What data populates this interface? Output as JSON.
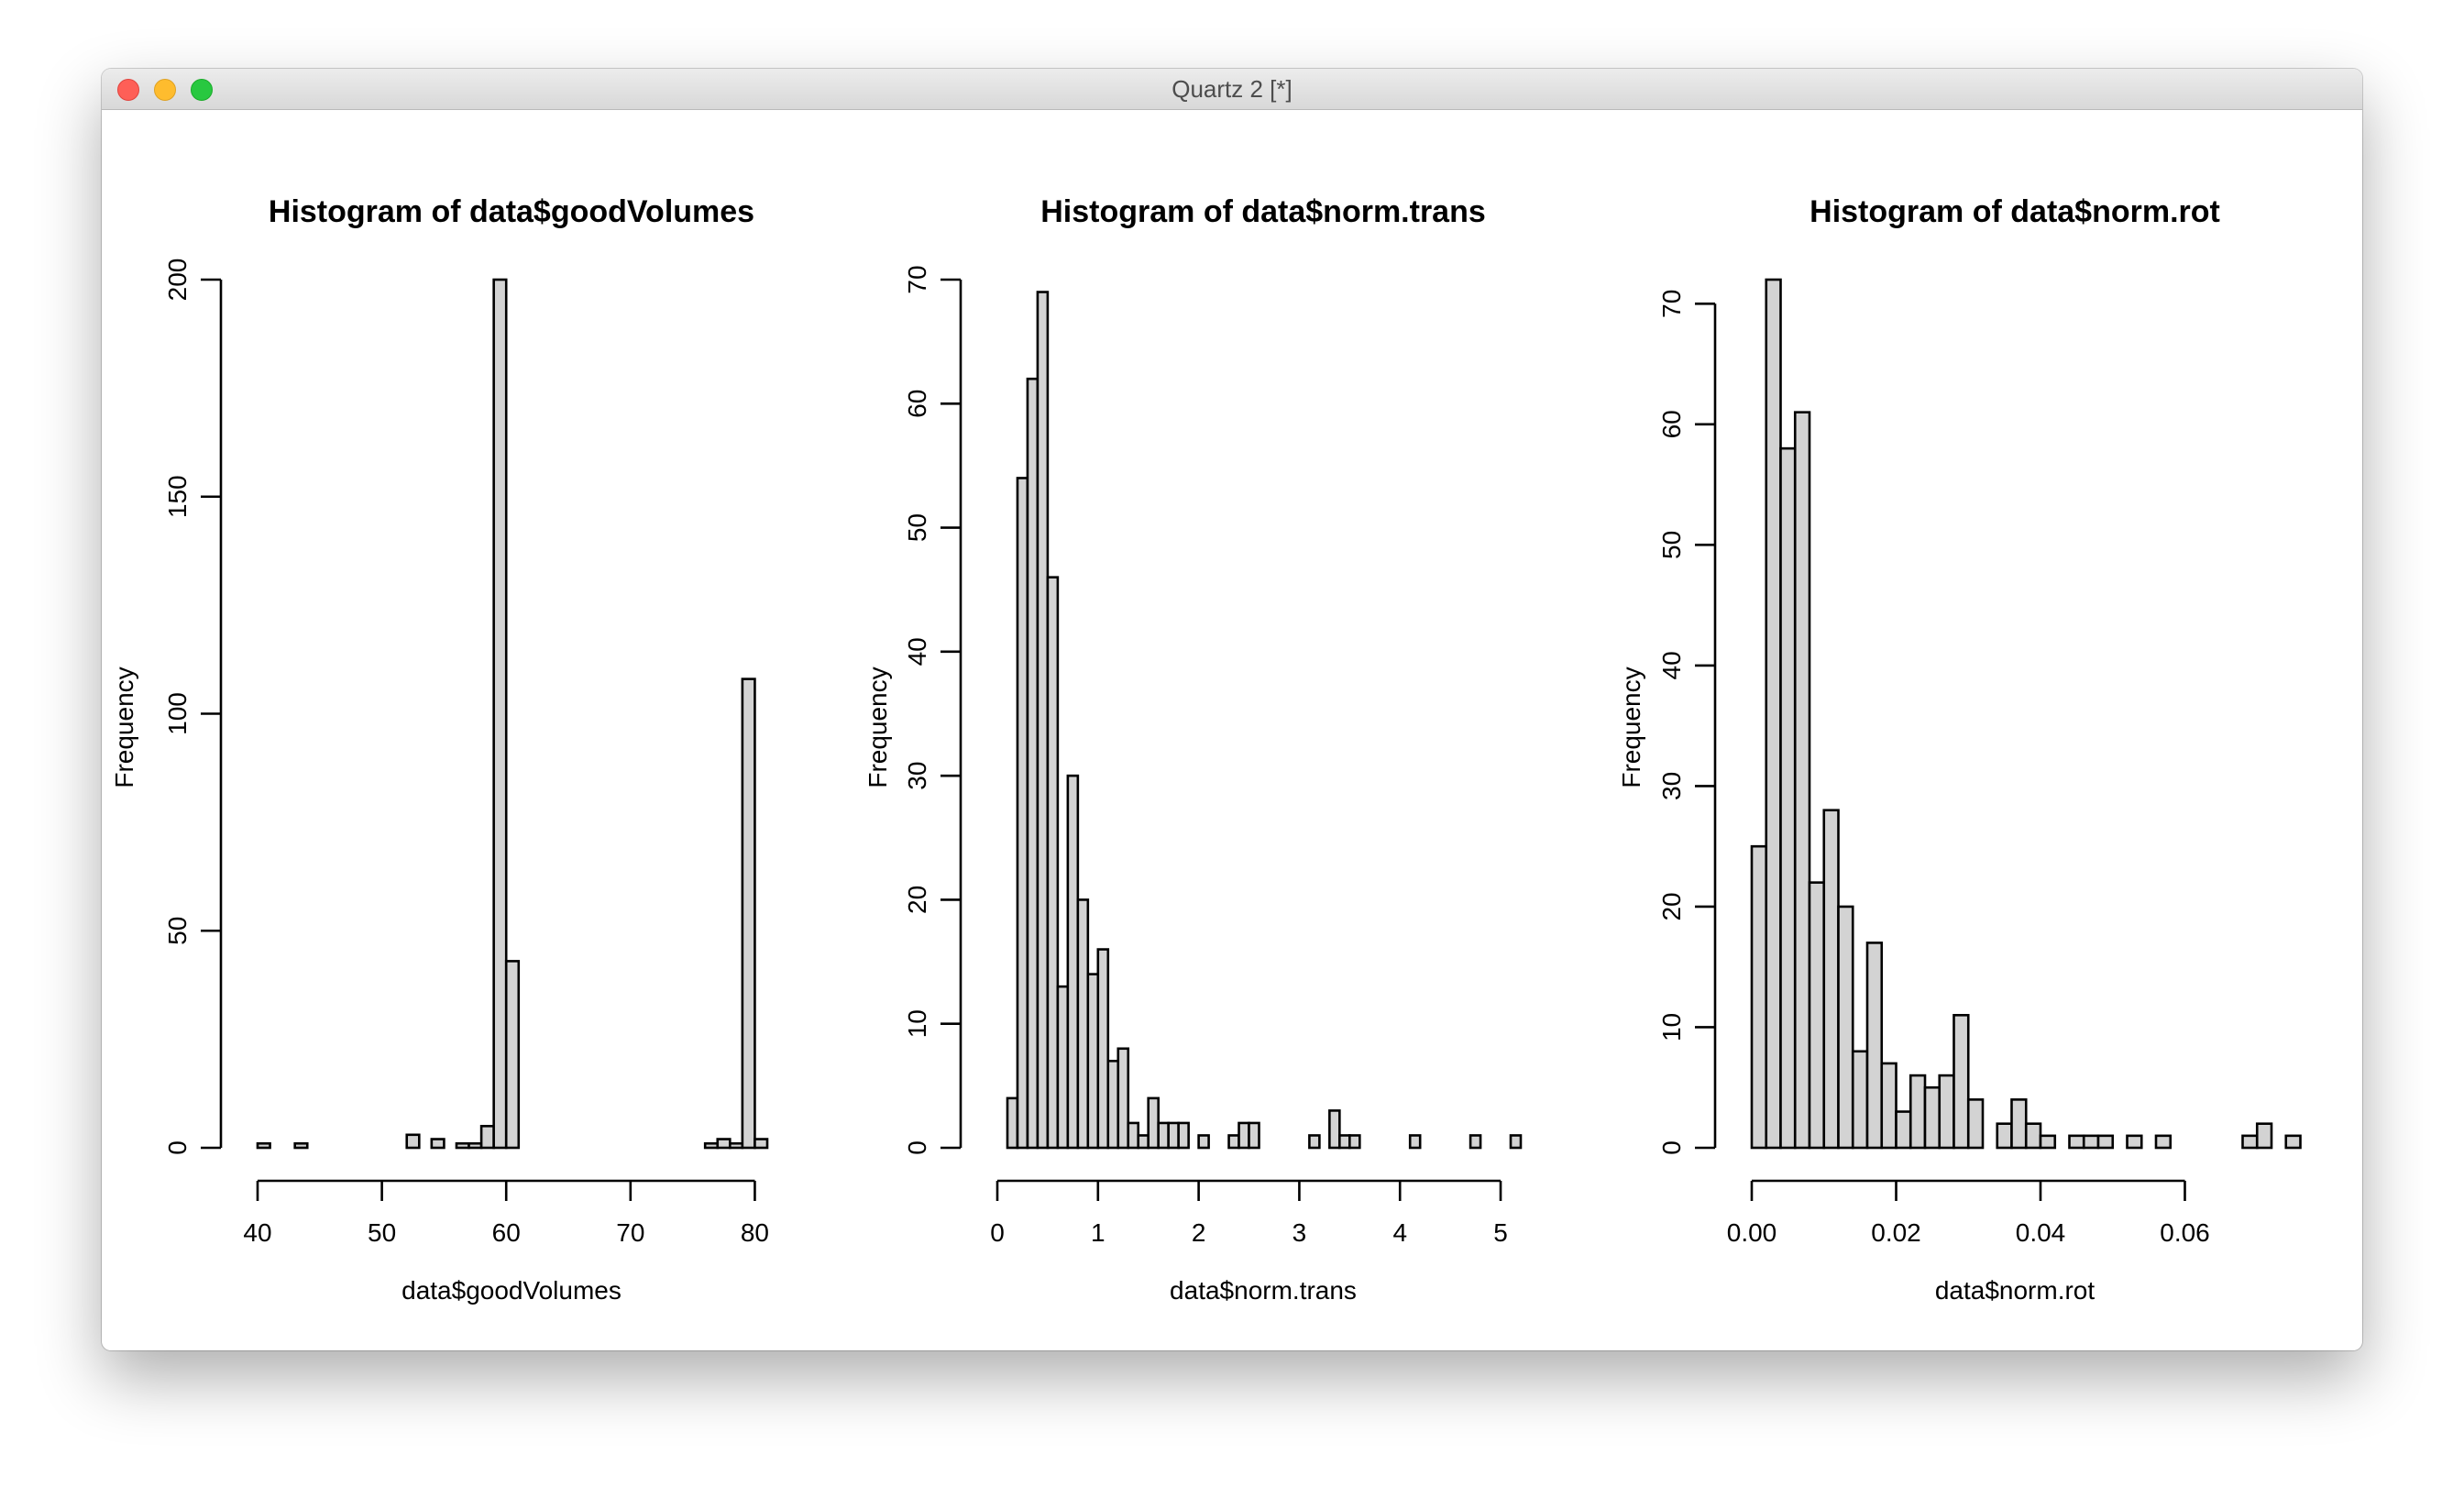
{
  "window": {
    "title": "Quartz 2 [*]"
  },
  "chart_data": [
    {
      "type": "bar",
      "title": "Histogram of data$goodVolumes",
      "xlabel": "data$goodVolumes",
      "ylabel": "Frequency",
      "xlim": [
        40,
        81
      ],
      "ylim": [
        0,
        200
      ],
      "xticks": [
        "40",
        "50",
        "60",
        "70",
        "80"
      ],
      "yticks": [
        "0",
        "50",
        "100",
        "150",
        "200"
      ],
      "xstart": 40,
      "binwidth": 1,
      "values": [
        1,
        0,
        0,
        1,
        0,
        0,
        0,
        0,
        0,
        0,
        0,
        0,
        3,
        0,
        2,
        0,
        1,
        1,
        5,
        200,
        43,
        0,
        0,
        0,
        0,
        0,
        0,
        0,
        0,
        0,
        0,
        0,
        0,
        0,
        0,
        0,
        1,
        2,
        1,
        108,
        2
      ]
    },
    {
      "type": "bar",
      "title": "Histogram of data$norm.trans",
      "xlabel": "data$norm.trans",
      "ylabel": "Frequency",
      "xlim": [
        0,
        5.2
      ],
      "ylim": [
        0,
        70
      ],
      "xticks": [
        "0",
        "1",
        "2",
        "3",
        "4",
        "5"
      ],
      "yticks": [
        "0",
        "10",
        "20",
        "30",
        "40",
        "50",
        "60",
        "70"
      ],
      "xstart": 0.1,
      "binwidth": 0.1,
      "values": [
        4,
        54,
        62,
        69,
        46,
        13,
        30,
        20,
        14,
        16,
        7,
        8,
        2,
        1,
        4,
        2,
        2,
        2,
        0,
        1,
        0,
        0,
        1,
        2,
        2,
        0,
        0,
        0,
        0,
        0,
        1,
        0,
        3,
        1,
        1,
        0,
        0,
        0,
        0,
        0,
        1,
        0,
        0,
        0,
        0,
        0,
        1,
        0,
        0,
        0,
        1
      ]
    },
    {
      "type": "bar",
      "title": "Histogram of data$norm.rot",
      "xlabel": "data$norm.rot",
      "ylabel": "Frequency",
      "xlim": [
        0,
        0.072
      ],
      "ylim": [
        0,
        72
      ],
      "xticks": [
        "0.00",
        "0.02",
        "0.04",
        "0.06"
      ],
      "yticks": [
        "0",
        "10",
        "20",
        "30",
        "40",
        "50",
        "60",
        "70"
      ],
      "xstart": 0,
      "binwidth": 0.002,
      "values": [
        25,
        72,
        58,
        61,
        22,
        28,
        20,
        8,
        17,
        7,
        3,
        6,
        5,
        6,
        11,
        4,
        0,
        2,
        4,
        2,
        1,
        0,
        1,
        1,
        1,
        0,
        1,
        0,
        1,
        0,
        0,
        0,
        0,
        0,
        1,
        2,
        0,
        1
      ]
    }
  ]
}
